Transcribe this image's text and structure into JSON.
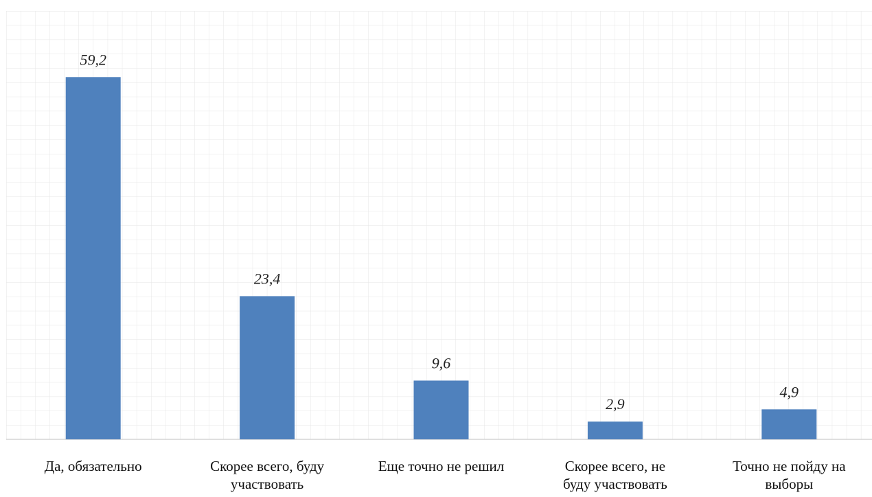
{
  "chart_data": {
    "type": "bar",
    "categories": [
      "Да, обязательно",
      "Скорее всего, буду\nучаствовать",
      "Еще точно не решил",
      "Скорее всего, не\nбуду участвовать",
      "Точно не пойду на\nвыборы"
    ],
    "values": [
      59.2,
      23.4,
      9.6,
      2.9,
      4.9
    ],
    "value_labels": [
      "59,2",
      "23,4",
      "9,6",
      "2,9",
      "4,9"
    ],
    "color": "#4f81bd",
    "ylim": [
      0,
      70
    ],
    "grid": true
  }
}
